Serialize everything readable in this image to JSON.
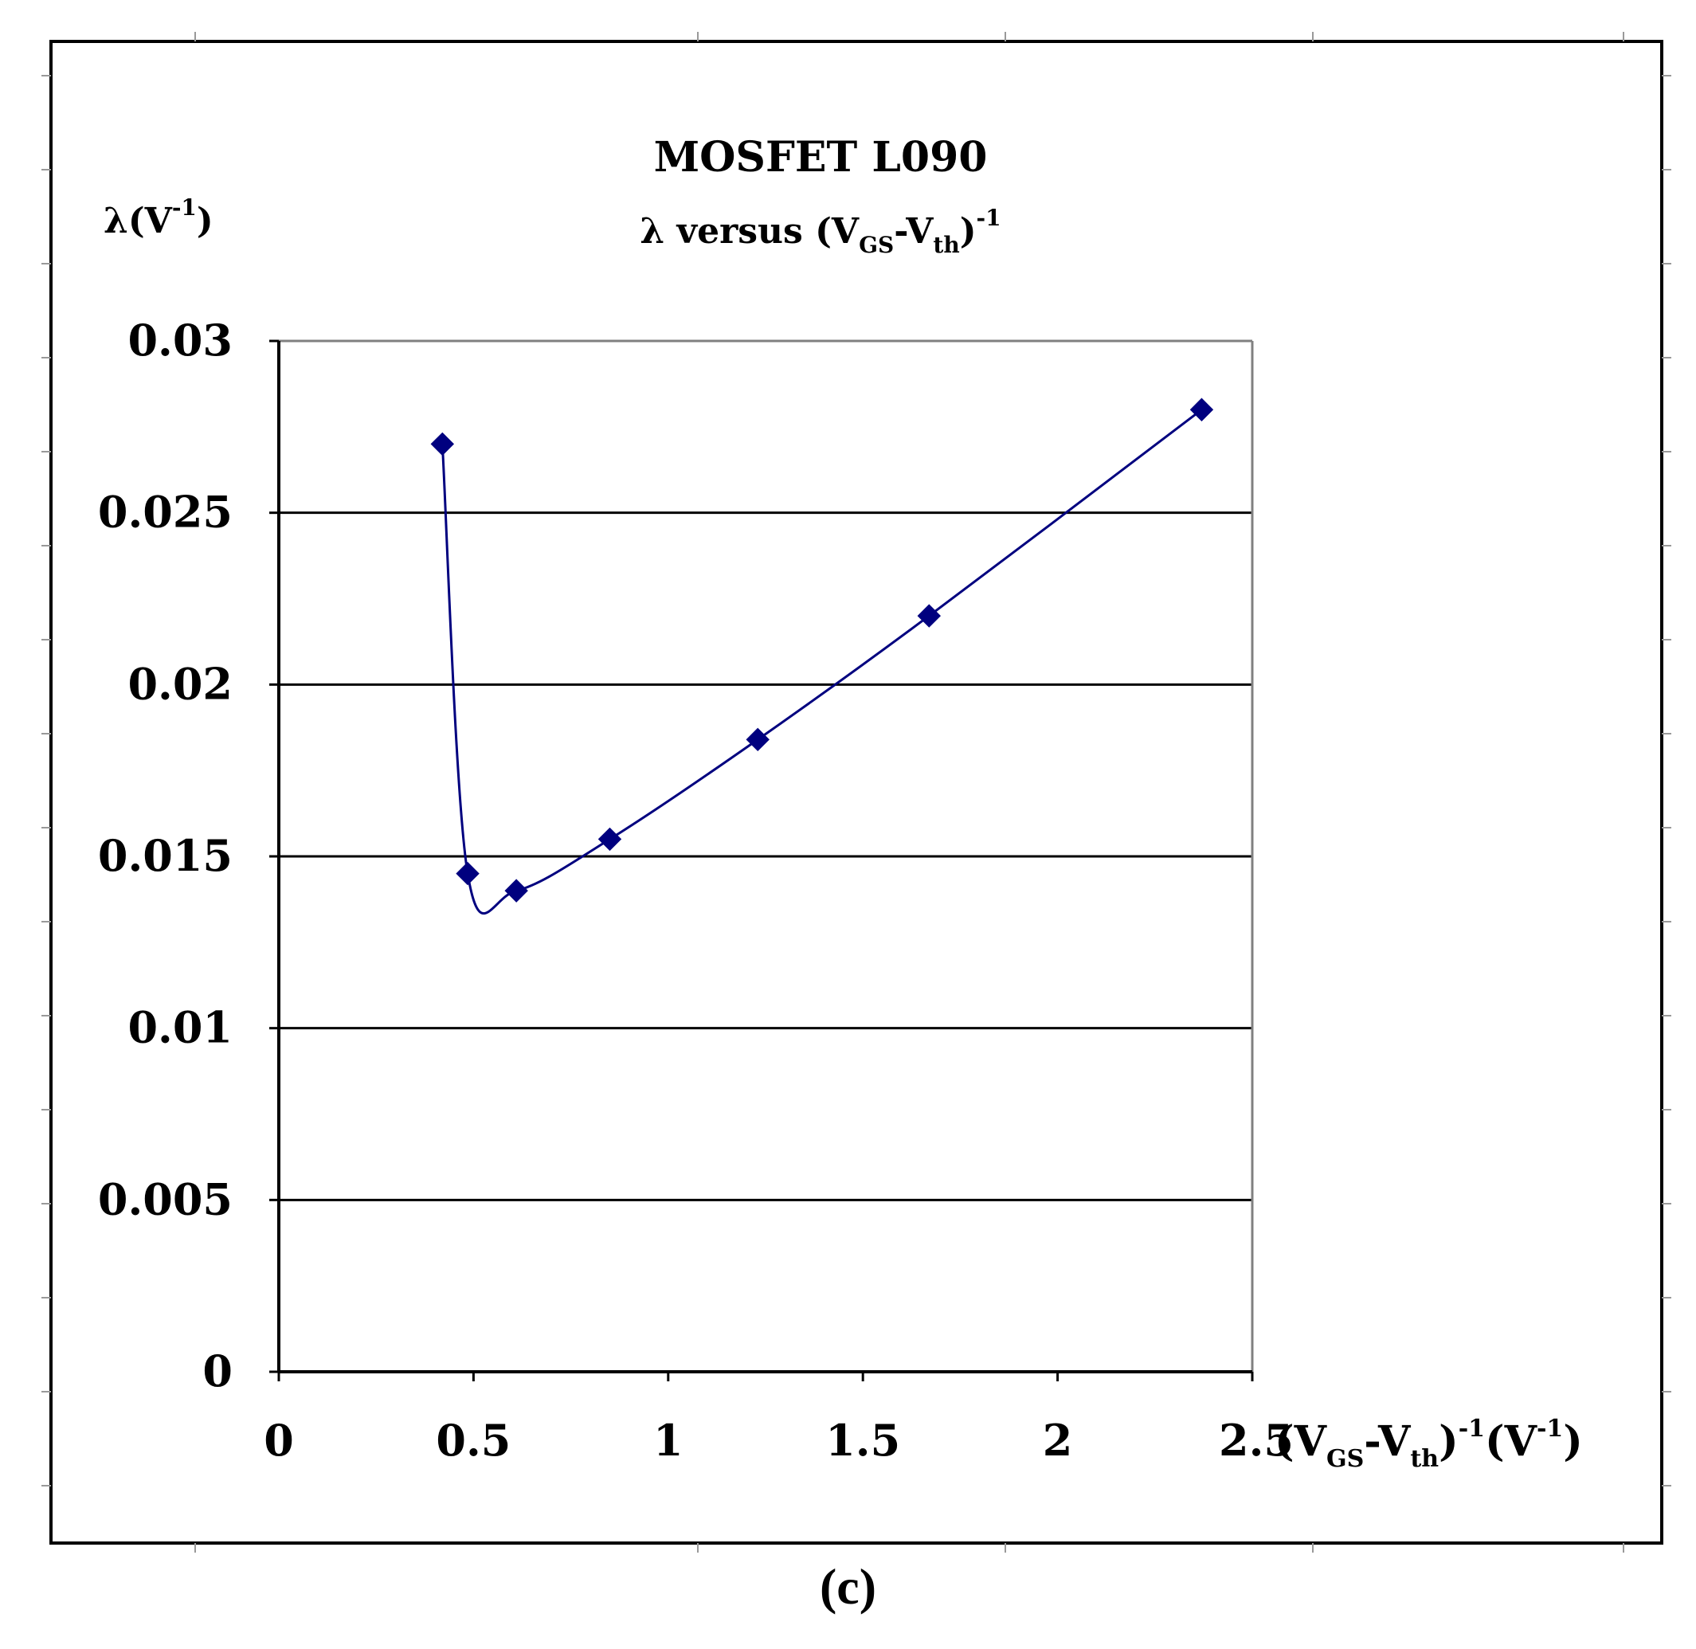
{
  "chart_data": {
    "type": "line",
    "title": "MOSFET L090",
    "subtitle": {
      "prefix": "λ versus (V",
      "sub1": "GS",
      "mid": "-V",
      "sub2": "th",
      "close": ")",
      "sup": "-1"
    },
    "ylabel": {
      "prefix": "λ(V",
      "sup": "-1",
      "close": ")"
    },
    "xlabel": {
      "prefix": "(V",
      "sub1": "GS",
      "mid": "-V",
      "sub2": "th",
      "close1": ")",
      "sup1": "-1",
      "unit_open": "(V",
      "sup2": "-1",
      "unit_close": ")"
    },
    "xlim": [
      0,
      2.5
    ],
    "ylim": [
      0,
      0.03
    ],
    "x_ticks": [
      "0",
      "0.5",
      "1",
      "1.5",
      "2",
      "2.5"
    ],
    "x_tick_values": [
      0,
      0.5,
      1,
      1.5,
      2,
      2.5
    ],
    "y_ticks": [
      "0",
      "0.005",
      "0.01",
      "0.015",
      "0.02",
      "0.025",
      "0.03"
    ],
    "y_tick_values": [
      0,
      0.005,
      0.01,
      0.015,
      0.02,
      0.025,
      0.03
    ],
    "grid": "horizontal",
    "series": [
      {
        "color": "#00007f",
        "marker": "diamond",
        "x": [
          0.42,
          0.485,
          0.61,
          0.85,
          1.23,
          1.67,
          2.37
        ],
        "y": [
          0.027,
          0.0145,
          0.014,
          0.0155,
          0.0184,
          0.022,
          0.028
        ]
      }
    ]
  },
  "caption": "(c)",
  "colors": {
    "series": "#00007f",
    "grid": "#000000",
    "plot_border": "#808080",
    "frame": "#000000"
  }
}
